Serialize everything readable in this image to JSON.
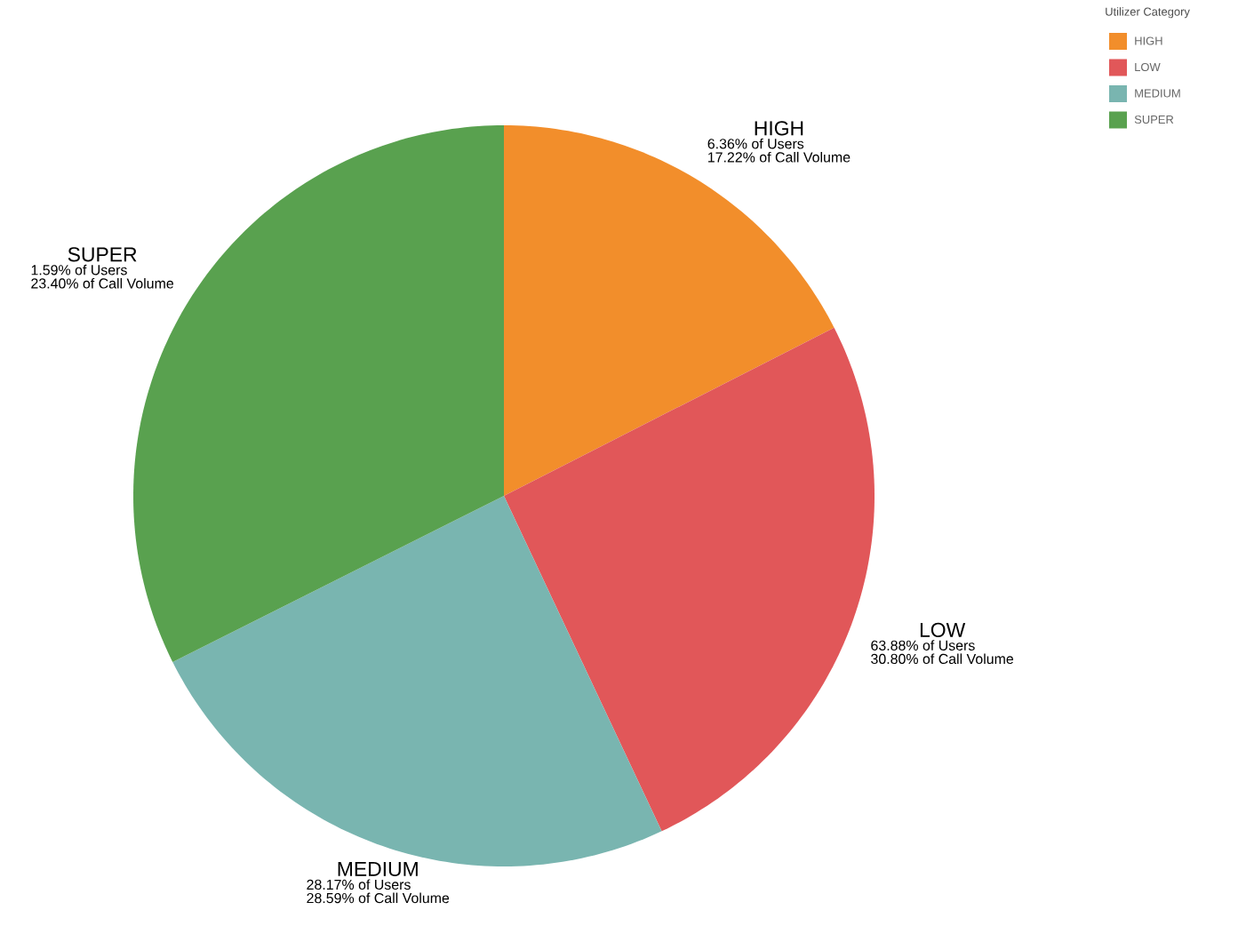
{
  "chart_data": {
    "type": "pie",
    "categories": [
      "HIGH",
      "LOW",
      "MEDIUM",
      "SUPER"
    ],
    "values": [
      17.5,
      25.5,
      24.6,
      32.4
    ],
    "colors": [
      "#f28e2b",
      "#e15759",
      "#79b5b0",
      "#59a14f"
    ],
    "annotations": [
      "6.36% of Users",
      "63.88% of Users",
      "28.17% of Users",
      "1.59% of Users",
      "17.22% of Call Volume",
      "30.80% of Call Volume",
      "28.59% of Call Volume",
      "23.40% of Call Volume"
    ],
    "legend_title": "Utilizer Category",
    "legend": "top right"
  }
}
